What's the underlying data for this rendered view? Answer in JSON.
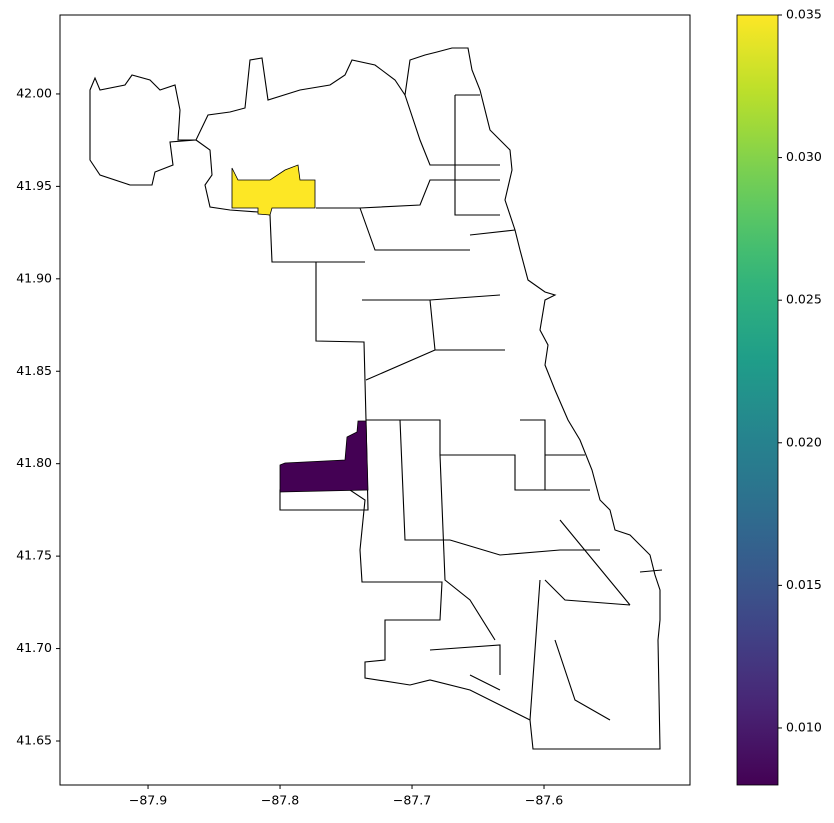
{
  "chart_data": {
    "type": "choropleth",
    "colormap": "viridis",
    "xlim": [
      -87.9667,
      -87.4894
    ],
    "ylim": [
      41.6262,
      42.0427
    ],
    "xticks": [
      {
        "value": -87.9,
        "label": "−87.9"
      },
      {
        "value": -87.8,
        "label": "−87.8"
      },
      {
        "value": -87.7,
        "label": "−87.7"
      },
      {
        "value": -87.6,
        "label": "−87.6"
      }
    ],
    "yticks": [
      {
        "value": 41.65,
        "label": "41.65"
      },
      {
        "value": 41.7,
        "label": "41.70"
      },
      {
        "value": 41.75,
        "label": "41.75"
      },
      {
        "value": 41.8,
        "label": "41.80"
      },
      {
        "value": 41.85,
        "label": "41.85"
      },
      {
        "value": 41.9,
        "label": "41.90"
      },
      {
        "value": 41.95,
        "label": "41.95"
      },
      {
        "value": 42.0,
        "label": "42.00"
      }
    ],
    "clim": [
      0.008,
      0.035
    ],
    "cticks": [
      {
        "value": 0.01,
        "label": "0.010"
      },
      {
        "value": 0.015,
        "label": "0.015"
      },
      {
        "value": 0.02,
        "label": "0.020"
      },
      {
        "value": 0.025,
        "label": "0.025"
      },
      {
        "value": 0.03,
        "label": "0.030"
      },
      {
        "value": 0.035,
        "label": "0.035"
      }
    ],
    "regions": [
      {
        "value": 0.035
      },
      {
        "value": 0.008
      }
    ]
  }
}
